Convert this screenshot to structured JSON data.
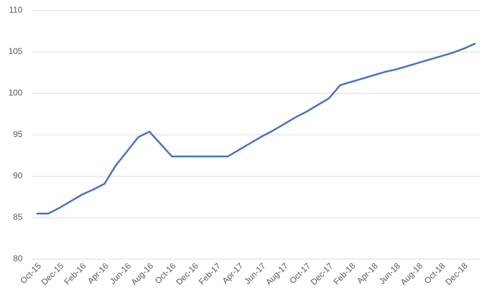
{
  "chart_data": {
    "type": "line",
    "categories": [
      "Oct-15",
      null,
      "Dec-15",
      null,
      "Feb-16",
      null,
      "Apr-16",
      null,
      "Jun-16",
      null,
      "Aug-16",
      null,
      "Oct-16",
      null,
      "Dec-16",
      null,
      "Feb-17",
      null,
      "Apr-17",
      null,
      "Jun-17",
      null,
      "Aug-17",
      null,
      "Oct-17",
      null,
      "Dec-17",
      null,
      "Feb-18",
      null,
      "Apr-18",
      null,
      "Jun-18",
      null,
      "Aug-18",
      null,
      "Oct-18",
      null,
      "Dec-18",
      null
    ],
    "values": [
      85.5,
      85.5,
      86.2,
      87.0,
      87.8,
      88.4,
      89.1,
      91.3,
      93.0,
      94.7,
      95.4,
      93.9,
      92.4,
      92.4,
      92.4,
      92.4,
      92.4,
      92.4,
      93.2,
      94.0,
      94.8,
      95.5,
      96.3,
      97.1,
      97.8,
      98.6,
      99.4,
      101.0,
      101.4,
      101.8,
      102.2,
      102.6,
      102.9,
      103.3,
      103.7,
      104.1,
      104.5,
      104.9,
      105.4,
      106.0
    ],
    "color": "#4472c4",
    "ylim": [
      80,
      110
    ],
    "yticks": [
      80,
      85,
      90,
      95,
      100,
      105,
      110
    ],
    "grid": true
  }
}
